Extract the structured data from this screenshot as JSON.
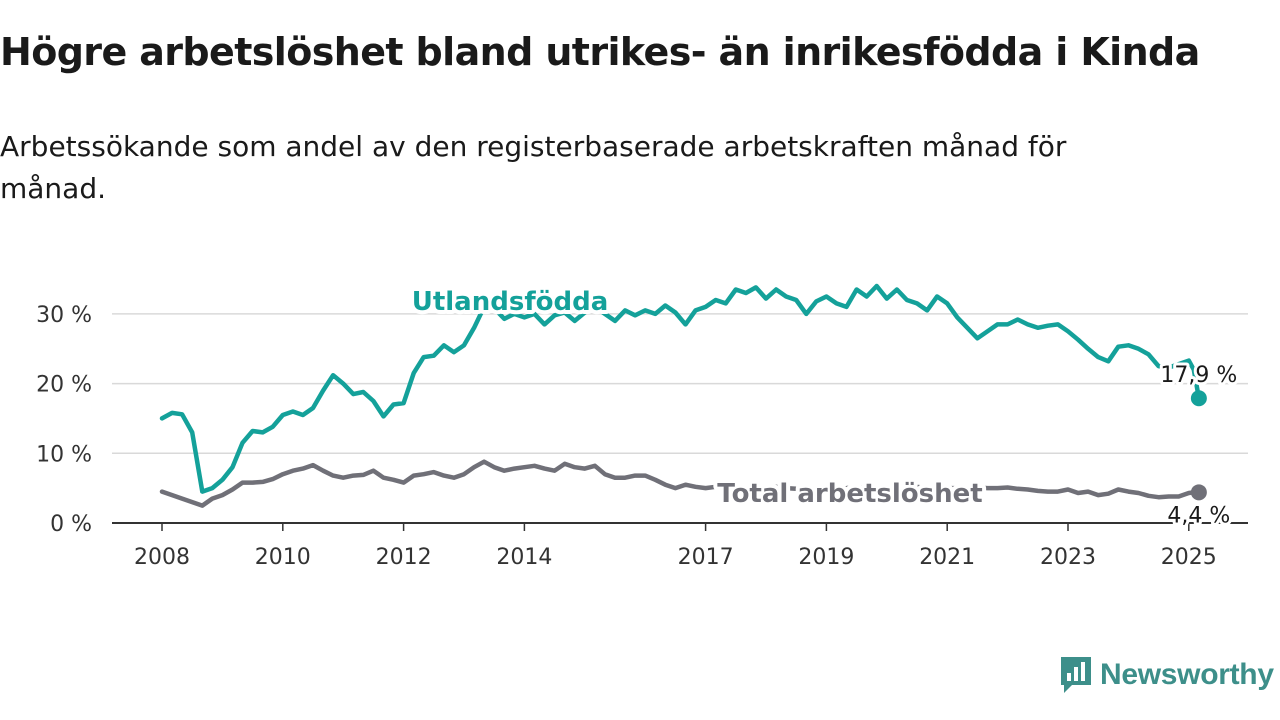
{
  "title": "Högre arbetslöshet bland utrikes- än inrikesfödda i Kinda",
  "subtitle": "Arbetssökande som andel av den registerbaserade arbetskraften månad för månad.",
  "brand": {
    "name": "Newsworthy",
    "color": "#3d8f8a"
  },
  "colors": {
    "foreign_born": "#14a19a",
    "total": "#707078",
    "grid": "#d9d9d9",
    "axis": "#333333"
  },
  "chart_data": {
    "type": "line",
    "title": "Högre arbetslöshet bland utrikes- än inrikesfödda i Kinda",
    "subtitle": "Arbetssökande som andel av den registerbaserade arbetskraften månad för månad.",
    "xlabel": "",
    "ylabel": "",
    "x_range": [
      "2008-01",
      "2025-03"
    ],
    "ylim": [
      0,
      35
    ],
    "y_ticks": [
      0,
      10,
      20,
      30
    ],
    "y_tick_labels": [
      "0 %",
      "10 %",
      "20 %",
      "30 %"
    ],
    "x_ticks": [
      "2008",
      "2010",
      "2012",
      "2014",
      "2017",
      "2019",
      "2021",
      "2023",
      "2025"
    ],
    "grid": "horizontal",
    "legend": "none",
    "series": [
      {
        "name": "Utlandsfödda",
        "color": "#14a19a",
        "end_label": "17,9 %",
        "points": [
          [
            "2008-01",
            15.0
          ],
          [
            "2008-03",
            15.8
          ],
          [
            "2008-05",
            15.6
          ],
          [
            "2008-07",
            13.0
          ],
          [
            "2008-09",
            4.5
          ],
          [
            "2008-11",
            5.0
          ],
          [
            "2009-01",
            6.2
          ],
          [
            "2009-03",
            8.0
          ],
          [
            "2009-05",
            11.5
          ],
          [
            "2009-07",
            13.2
          ],
          [
            "2009-09",
            13.0
          ],
          [
            "2009-11",
            13.8
          ],
          [
            "2010-01",
            15.5
          ],
          [
            "2010-03",
            16.0
          ],
          [
            "2010-05",
            15.5
          ],
          [
            "2010-07",
            16.5
          ],
          [
            "2010-09",
            19.0
          ],
          [
            "2010-11",
            21.2
          ],
          [
            "2011-01",
            20.0
          ],
          [
            "2011-03",
            18.5
          ],
          [
            "2011-05",
            18.8
          ],
          [
            "2011-07",
            17.5
          ],
          [
            "2011-09",
            15.3
          ],
          [
            "2011-11",
            17.0
          ],
          [
            "2012-01",
            17.2
          ],
          [
            "2012-03",
            21.5
          ],
          [
            "2012-05",
            23.8
          ],
          [
            "2012-07",
            24.0
          ],
          [
            "2012-09",
            25.5
          ],
          [
            "2012-11",
            24.5
          ],
          [
            "2013-01",
            25.5
          ],
          [
            "2013-03",
            28.0
          ],
          [
            "2013-05",
            31.0
          ],
          [
            "2013-07",
            30.8
          ],
          [
            "2013-09",
            29.3
          ],
          [
            "2013-11",
            30.0
          ],
          [
            "2014-01",
            29.5
          ],
          [
            "2014-03",
            30.0
          ],
          [
            "2014-05",
            28.5
          ],
          [
            "2014-07",
            29.8
          ],
          [
            "2014-09",
            30.2
          ],
          [
            "2014-11",
            29.0
          ],
          [
            "2015-01",
            30.2
          ],
          [
            "2015-03",
            31.0
          ],
          [
            "2015-05",
            30.0
          ],
          [
            "2015-07",
            29.0
          ],
          [
            "2015-09",
            30.5
          ],
          [
            "2015-11",
            29.8
          ],
          [
            "2016-01",
            30.5
          ],
          [
            "2016-03",
            30.0
          ],
          [
            "2016-05",
            31.2
          ],
          [
            "2016-07",
            30.2
          ],
          [
            "2016-09",
            28.5
          ],
          [
            "2016-11",
            30.5
          ],
          [
            "2017-01",
            31.0
          ],
          [
            "2017-03",
            32.0
          ],
          [
            "2017-05",
            31.5
          ],
          [
            "2017-07",
            33.5
          ],
          [
            "2017-09",
            33.0
          ],
          [
            "2017-11",
            33.8
          ],
          [
            "2018-01",
            32.2
          ],
          [
            "2018-03",
            33.5
          ],
          [
            "2018-05",
            32.5
          ],
          [
            "2018-07",
            32.0
          ],
          [
            "2018-09",
            30.0
          ],
          [
            "2018-11",
            31.8
          ],
          [
            "2019-01",
            32.5
          ],
          [
            "2019-03",
            31.5
          ],
          [
            "2019-05",
            31.0
          ],
          [
            "2019-07",
            33.5
          ],
          [
            "2019-09",
            32.5
          ],
          [
            "2019-11",
            34.0
          ],
          [
            "2020-01",
            32.2
          ],
          [
            "2020-03",
            33.5
          ],
          [
            "2020-05",
            32.0
          ],
          [
            "2020-07",
            31.5
          ],
          [
            "2020-09",
            30.5
          ],
          [
            "2020-11",
            32.5
          ],
          [
            "2021-01",
            31.5
          ],
          [
            "2021-03",
            29.5
          ],
          [
            "2021-05",
            28.0
          ],
          [
            "2021-07",
            26.5
          ],
          [
            "2021-09",
            27.5
          ],
          [
            "2021-11",
            28.5
          ],
          [
            "2022-01",
            28.5
          ],
          [
            "2022-03",
            29.2
          ],
          [
            "2022-05",
            28.5
          ],
          [
            "2022-07",
            28.0
          ],
          [
            "2022-09",
            28.3
          ],
          [
            "2022-11",
            28.5
          ],
          [
            "2023-01",
            27.5
          ],
          [
            "2023-03",
            26.3
          ],
          [
            "2023-05",
            25.0
          ],
          [
            "2023-07",
            23.8
          ],
          [
            "2023-09",
            23.2
          ],
          [
            "2023-11",
            25.3
          ],
          [
            "2024-01",
            25.5
          ],
          [
            "2024-03",
            25.0
          ],
          [
            "2024-05",
            24.2
          ],
          [
            "2024-07",
            22.5
          ],
          [
            "2024-09",
            22.3
          ],
          [
            "2024-11",
            22.8
          ],
          [
            "2025-01",
            23.3
          ],
          [
            "2025-02",
            22.0
          ],
          [
            "2025-03",
            17.9
          ]
        ]
      },
      {
        "name": "Total arbetslöshet",
        "color": "#707078",
        "end_label": "4,4 %",
        "points": [
          [
            "2008-01",
            4.5
          ],
          [
            "2008-03",
            4.0
          ],
          [
            "2008-05",
            3.5
          ],
          [
            "2008-07",
            3.0
          ],
          [
            "2008-09",
            2.5
          ],
          [
            "2008-11",
            3.5
          ],
          [
            "2009-01",
            4.0
          ],
          [
            "2009-03",
            4.8
          ],
          [
            "2009-05",
            5.8
          ],
          [
            "2009-07",
            5.8
          ],
          [
            "2009-09",
            5.9
          ],
          [
            "2009-11",
            6.3
          ],
          [
            "2010-01",
            7.0
          ],
          [
            "2010-03",
            7.5
          ],
          [
            "2010-05",
            7.8
          ],
          [
            "2010-07",
            8.3
          ],
          [
            "2010-09",
            7.5
          ],
          [
            "2010-11",
            6.8
          ],
          [
            "2011-01",
            6.5
          ],
          [
            "2011-03",
            6.8
          ],
          [
            "2011-05",
            6.9
          ],
          [
            "2011-07",
            7.5
          ],
          [
            "2011-09",
            6.5
          ],
          [
            "2011-11",
            6.2
          ],
          [
            "2012-01",
            5.8
          ],
          [
            "2012-03",
            6.8
          ],
          [
            "2012-05",
            7.0
          ],
          [
            "2012-07",
            7.3
          ],
          [
            "2012-09",
            6.8
          ],
          [
            "2012-11",
            6.5
          ],
          [
            "2013-01",
            7.0
          ],
          [
            "2013-03",
            8.0
          ],
          [
            "2013-05",
            8.8
          ],
          [
            "2013-07",
            8.0
          ],
          [
            "2013-09",
            7.5
          ],
          [
            "2013-11",
            7.8
          ],
          [
            "2014-01",
            8.0
          ],
          [
            "2014-03",
            8.2
          ],
          [
            "2014-05",
            7.8
          ],
          [
            "2014-07",
            7.5
          ],
          [
            "2014-09",
            8.5
          ],
          [
            "2014-11",
            8.0
          ],
          [
            "2015-01",
            7.8
          ],
          [
            "2015-03",
            8.2
          ],
          [
            "2015-05",
            7.0
          ],
          [
            "2015-07",
            6.5
          ],
          [
            "2015-09",
            6.5
          ],
          [
            "2015-11",
            6.8
          ],
          [
            "2016-01",
            6.8
          ],
          [
            "2016-03",
            6.2
          ],
          [
            "2016-05",
            5.5
          ],
          [
            "2016-07",
            5.0
          ],
          [
            "2016-09",
            5.5
          ],
          [
            "2016-11",
            5.2
          ],
          [
            "2017-01",
            5.0
          ],
          [
            "2017-03",
            5.2
          ],
          [
            "2017-05",
            5.5
          ],
          [
            "2017-07",
            5.2
          ],
          [
            "2017-09",
            4.8
          ],
          [
            "2017-11",
            5.0
          ],
          [
            "2018-01",
            5.0
          ],
          [
            "2018-03",
            5.2
          ],
          [
            "2018-05",
            5.0
          ],
          [
            "2018-07",
            4.9
          ],
          [
            "2018-09",
            4.8
          ],
          [
            "2018-11",
            5.0
          ],
          [
            "2019-01",
            5.1
          ],
          [
            "2019-03",
            4.9
          ],
          [
            "2019-05",
            5.0
          ],
          [
            "2019-07",
            5.2
          ],
          [
            "2019-09",
            5.0
          ],
          [
            "2019-11",
            5.1
          ],
          [
            "2020-01",
            5.0
          ],
          [
            "2020-03",
            4.9
          ],
          [
            "2020-05",
            5.0
          ],
          [
            "2020-07",
            5.2
          ],
          [
            "2020-09",
            5.0
          ],
          [
            "2020-11",
            5.1
          ],
          [
            "2021-01",
            5.0
          ],
          [
            "2021-03",
            5.0
          ],
          [
            "2021-05",
            4.9
          ],
          [
            "2021-07",
            5.1
          ],
          [
            "2021-09",
            5.0
          ],
          [
            "2021-11",
            5.0
          ],
          [
            "2022-01",
            5.1
          ],
          [
            "2022-03",
            4.9
          ],
          [
            "2022-05",
            4.8
          ],
          [
            "2022-07",
            4.6
          ],
          [
            "2022-09",
            4.5
          ],
          [
            "2022-11",
            4.5
          ],
          [
            "2023-01",
            4.8
          ],
          [
            "2023-03",
            4.3
          ],
          [
            "2023-05",
            4.5
          ],
          [
            "2023-07",
            4.0
          ],
          [
            "2023-09",
            4.2
          ],
          [
            "2023-11",
            4.8
          ],
          [
            "2024-01",
            4.5
          ],
          [
            "2024-03",
            4.3
          ],
          [
            "2024-05",
            3.9
          ],
          [
            "2024-07",
            3.7
          ],
          [
            "2024-09",
            3.8
          ],
          [
            "2024-11",
            3.8
          ],
          [
            "2025-01",
            4.3
          ],
          [
            "2025-02",
            4.4
          ],
          [
            "2025-03",
            4.4
          ]
        ]
      }
    ]
  }
}
